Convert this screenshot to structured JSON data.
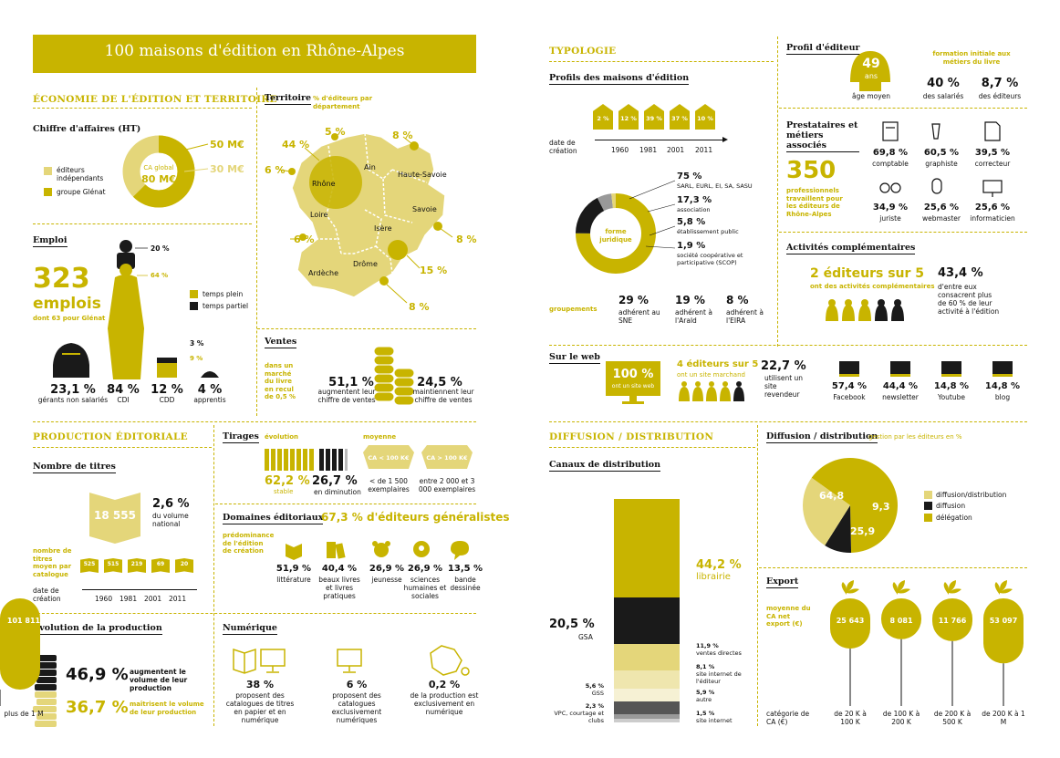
{
  "colors": {
    "accent": "#c8b400",
    "light": "#e4d67a",
    "pale": "#efe6ae",
    "dark": "#1a1a1a",
    "gray": "#888888"
  },
  "header": {
    "title": "100 maisons d'édition en Rhône-Alpes"
  },
  "left": {
    "eco": {
      "title": "ÉCONOMIE DE L'ÉDITION ET TERRITOIRE"
    },
    "ca": {
      "title": "Chiffre d'affaires (HT)",
      "val1": "50 M€",
      "val2": "30 M€",
      "center": "CA global",
      "center_val": "80 M€",
      "legend": [
        "éditeurs indépendants",
        "groupe Glénat"
      ]
    },
    "territoire": {
      "title": "Territoire",
      "subtitle": "% d'éditeurs par département",
      "depts": [
        {
          "name": "Rhône",
          "pct": "44 %"
        },
        {
          "name": "Ain",
          "pct": "5 %"
        },
        {
          "name": "Haute-Savoie",
          "pct": "8 %"
        },
        {
          "name": "Savoie",
          "pct": "8 %"
        },
        {
          "name": "Isère",
          "pct": "15 %"
        },
        {
          "name": "Drôme",
          "pct": "8 %"
        },
        {
          "name": "Ardèche",
          "pct": "6 %"
        },
        {
          "name": "Loire",
          "pct": "6 %"
        }
      ]
    },
    "emploi": {
      "title": "Emploi",
      "big": "323",
      "big_label": "emplois",
      "sub": "dont 63 pour Glénat",
      "pct_top": "20 %",
      "pct_mid": "64 %",
      "legend": [
        "temps plein",
        "temps partiel"
      ],
      "stats": [
        {
          "v": "23,1 %",
          "l": "gérants non salariés"
        },
        {
          "v": "84 %",
          "l": "CDI"
        },
        {
          "v": "12 %",
          "l": "CDD"
        },
        {
          "v": "4 %",
          "l": "apprentis"
        }
      ],
      "small_top": "3 %",
      "small_mid": "9 %"
    },
    "ventes": {
      "title": "Ventes",
      "side": "dans un marché du livre en recul de 0,5 %",
      "s1_v": "51,1 %",
      "s1_l": "augmentent leur chiffre de ventes",
      "s2_v": "24,5 %",
      "s2_l": "maintiennent leur chiffre de ventes"
    },
    "prod": {
      "title": "PRODUCTION ÉDITORIALE"
    },
    "titres": {
      "title": "Nombre de titres",
      "big": "18 555",
      "pct": "2,6 %",
      "pct_l": "du volume national",
      "side": "nombre de titres moyen par catalogue",
      "books": [
        "525",
        "515",
        "219",
        "69",
        "20"
      ],
      "date_label": "date de création",
      "years": [
        "1960",
        "1981",
        "2001",
        "2011"
      ]
    },
    "tirages": {
      "title": "Tirages",
      "evo": "évolution",
      "moy": "moyenne",
      "b1": "CA < 100 K€",
      "b2": "CA > 100 K€",
      "s1_v": "62,2 %",
      "s1_l": "stable",
      "s2_v": "26,7 %",
      "s2_l": "en diminution",
      "m1": "< de 1 500 exemplaires",
      "m2": "entre 2 000 et 3 000 exemplaires"
    },
    "domaines": {
      "title": "Domaines éditoriaux",
      "headline": "67,3 % d'éditeurs généralistes",
      "side": "prédominance de l'édition de création",
      "items": [
        {
          "v": "51,9 %",
          "l": "littérature"
        },
        {
          "v": "40,4 %",
          "l": "beaux livres et livres pratiques"
        },
        {
          "v": "26,9 %",
          "l": "jeunesse"
        },
        {
          "v": "26,9 %",
          "l": "sciences humaines et sociales"
        },
        {
          "v": "13,5 %",
          "l": "bande dessinée"
        }
      ]
    },
    "evolution": {
      "title": "Évolution de la production",
      "s1_v": "46,9 %",
      "s1_l": "augmentent le volume de leur production",
      "s2_v": "36,7 %",
      "s2_l": "maîtrisent le volume de leur production"
    },
    "numerique": {
      "title": "Numérique",
      "items": [
        {
          "v": "38 %",
          "l": "proposent des catalogues de titres en papier et en numérique"
        },
        {
          "v": "6 %",
          "l": "proposent des catalogues exclusivement numériques"
        },
        {
          "v": "0,2 %",
          "l": "de la production est exclusivement en numérique"
        }
      ]
    }
  },
  "right": {
    "typo": {
      "title": "TYPOLOGIE",
      "profils": "Profils des maisons d'édition",
      "houses": [
        "2 %",
        "12 %",
        "39 %",
        "37 %",
        "10 %"
      ],
      "years": [
        "1960",
        "1981",
        "2001",
        "2011"
      ],
      "date_label": "date de création",
      "forme": "forme juridique",
      "legal": [
        {
          "v": "75 %",
          "l": "SARL, EURL, EI, SA, SASU"
        },
        {
          "v": "17,3 %",
          "l": "association"
        },
        {
          "v": "5,8 %",
          "l": "établissement public"
        },
        {
          "v": "1,9 %",
          "l": "société coopérative et participative (SCOP)"
        }
      ],
      "group_label": "groupements",
      "groups": [
        {
          "v": "29 %",
          "l": "adhérent au SNE"
        },
        {
          "v": "19 %",
          "l": "adhérent à l'Arald"
        },
        {
          "v": "8 %",
          "l": "adhérent à l'EIRA"
        }
      ]
    },
    "profil": {
      "title": "Profil d'éditeur",
      "age": "49",
      "age_u": "ans",
      "age_l": "âge moyen",
      "formation": "formation initiale aux métiers du livre",
      "s1_v": "40 %",
      "s1_l": "des salariés",
      "s2_v": "8,7 %",
      "s2_l": "des éditeurs"
    },
    "presta": {
      "title": "Prestataires et métiers associés",
      "big": "350",
      "big_l": "professionnels travaillent pour les éditeurs de Rhône-Alpes",
      "items": [
        {
          "v": "69,8 %",
          "l": "comptable"
        },
        {
          "v": "60,5 %",
          "l": "graphiste"
        },
        {
          "v": "39,5 %",
          "l": "correcteur"
        },
        {
          "v": "34,9 %",
          "l": "juriste"
        },
        {
          "v": "25,6 %",
          "l": "webmaster"
        },
        {
          "v": "25,6 %",
          "l": "informaticien"
        }
      ]
    },
    "activites": {
      "title": "Activités complémentaires",
      "headline": "2 éditeurs sur 5",
      "sub": "ont des activités complémentaires",
      "pct": "43,4 %",
      "pct_l": "d'entre eux consacrent plus de 60 % de leur activité à l'édition"
    },
    "web": {
      "title": "Sur le web",
      "big": "100 %",
      "big_l": "ont un site web",
      "m": "4 éditeurs sur 5",
      "m_l": "ont un site marchand",
      "r_v": "22,7 %",
      "r_l": "utilisent un site revendeur",
      "items": [
        {
          "v": "57,4 %",
          "l": "Facebook"
        },
        {
          "v": "44,4 %",
          "l": "newsletter"
        },
        {
          "v": "14,8 %",
          "l": "Youtube"
        },
        {
          "v": "14,8 %",
          "l": "blog"
        }
      ]
    },
    "diff": {
      "title": "DIFFUSION / DISTRIBUTION",
      "canaux": "Canaux de distribution",
      "lib_v": "44,2 %",
      "lib_l": "librairie",
      "gsa_v": "20,5 %",
      "gsa_l": "GSA",
      "items": [
        {
          "v": "11,9 %",
          "l": "ventes directes"
        },
        {
          "v": "8,1 %",
          "l": "site internet de l'éditeur"
        },
        {
          "v": "5,9 %",
          "l": "autre"
        },
        {
          "v": "1,5 %",
          "l": "site internet"
        }
      ],
      "left_items": [
        {
          "v": "5,6 %",
          "l": "GSS"
        },
        {
          "v": "2,3 %",
          "l": "VPC, courtage et clubs"
        }
      ]
    },
    "distrib": {
      "title": "Diffusion / distribution",
      "sub": "gestion par les éditeurs en %",
      "slices": [
        {
          "v": "64,8",
          "name": "délégation"
        },
        {
          "v": "9,3",
          "name": "diffusion"
        },
        {
          "v": "25,9",
          "name": "diffusion/distribution"
        }
      ]
    },
    "export": {
      "title": "Export",
      "side": "moyenne du CA net export (€)",
      "cat_label": "catégorie de CA (€)",
      "items": [
        {
          "v": "25 643",
          "c": "de 20 K à 100 K"
        },
        {
          "v": "8 081",
          "c": "de 100 K à 200 K"
        },
        {
          "v": "11 766",
          "c": "de 200 K à 500 K"
        },
        {
          "v": "53 097",
          "c": "de 200 K à 1 M"
        },
        {
          "v": "101 811",
          "c": "plus de 1 M"
        }
      ]
    }
  }
}
